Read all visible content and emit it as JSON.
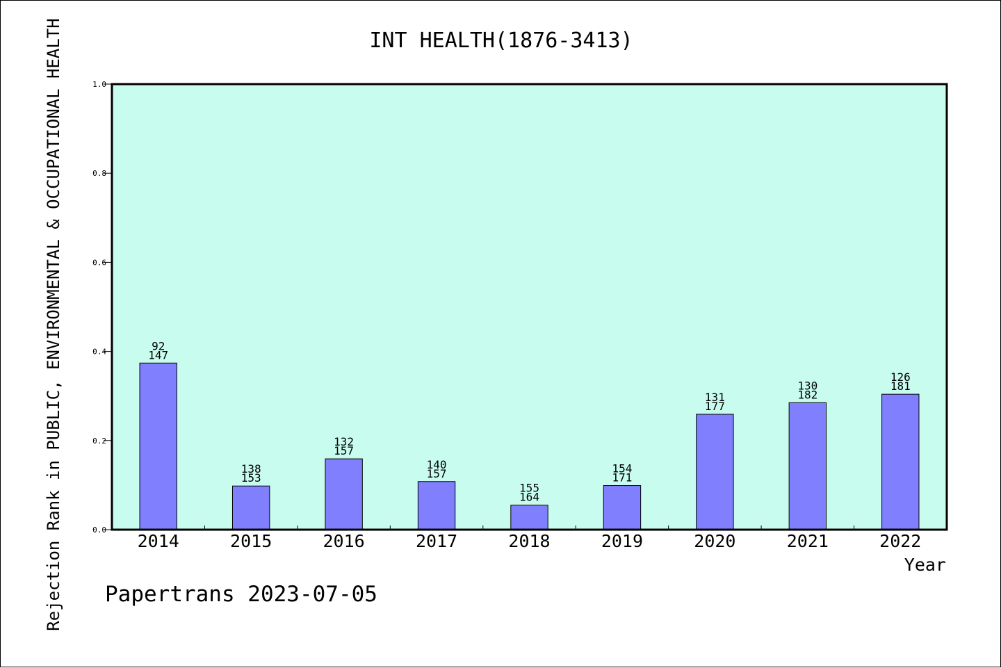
{
  "chart_data": {
    "type": "bar",
    "title": "INT HEALTH(1876-3413)",
    "xlabel": "Year",
    "ylabel": "Rejection Rank in PUBLIC, ENVIRONMENTAL & OCCUPATIONAL HEALTH",
    "ylim": [
      0,
      1.0
    ],
    "yticks": [
      "0.0",
      "0.2",
      "0.4",
      "0.6",
      "0.8",
      "1.0"
    ],
    "categories": [
      "2014",
      "2015",
      "2016",
      "2017",
      "2018",
      "2019",
      "2020",
      "2021",
      "2022"
    ],
    "values": [
      0.374,
      0.098,
      0.159,
      0.108,
      0.055,
      0.099,
      0.259,
      0.285,
      0.304
    ],
    "rank_labels": [
      "92",
      "138",
      "132",
      "140",
      "155",
      "154",
      "131",
      "130",
      "126"
    ],
    "total_labels": [
      "147",
      "153",
      "157",
      "157",
      "164",
      "171",
      "177",
      "182",
      "181"
    ],
    "grid": false,
    "colors": {
      "plot_background": "#c8fcee",
      "bar_fill": "#8080ff",
      "bar_stroke": "#000000"
    }
  },
  "footer": {
    "text": "Papertrans 2023-07-05"
  }
}
